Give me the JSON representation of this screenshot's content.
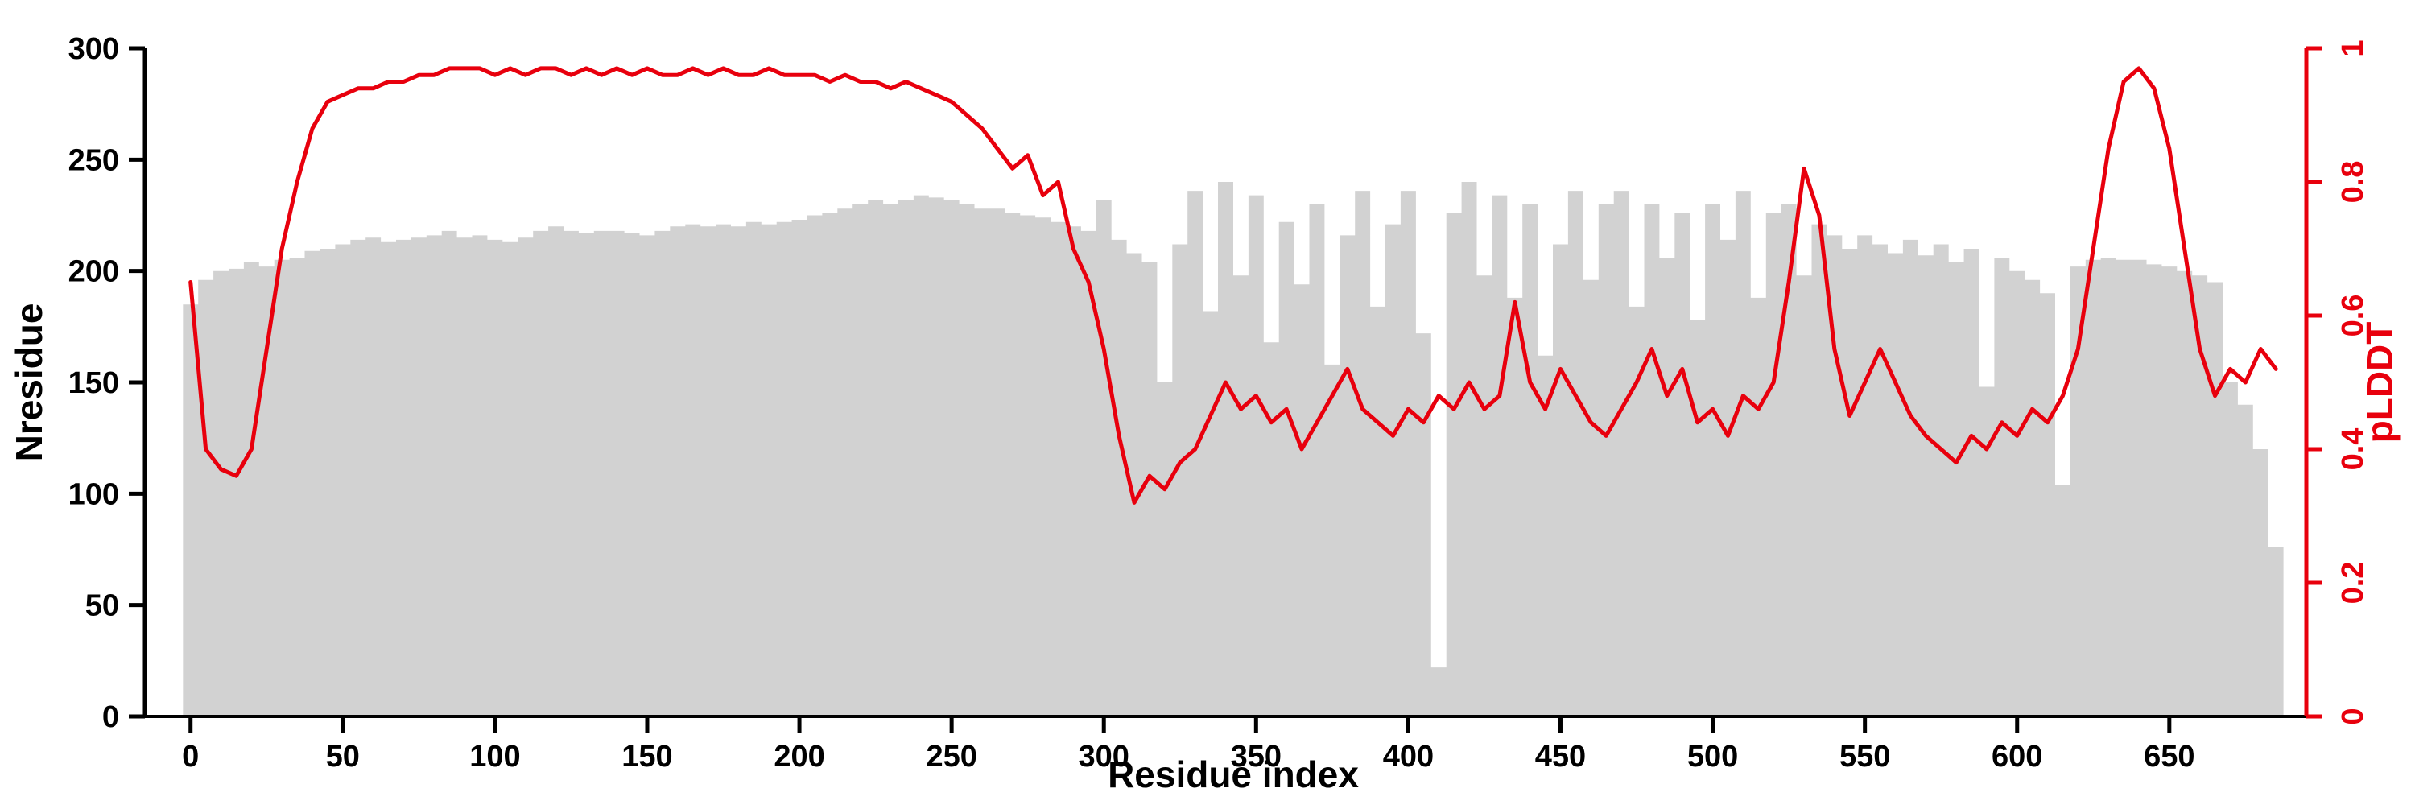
{
  "figure": {
    "background": "#ffffff"
  },
  "chart_data": {
    "type": "combo",
    "title": "",
    "xlabel": "Residue index",
    "xlim": [
      -15,
      695
    ],
    "x_ticks": [
      0,
      50,
      100,
      150,
      200,
      250,
      300,
      350,
      400,
      450,
      500,
      550,
      600,
      650
    ],
    "grid": false,
    "legend": "none",
    "axes": {
      "left": {
        "label": "Nresidue",
        "lim": [
          0,
          300
        ],
        "ticks": [
          0,
          50,
          100,
          150,
          200,
          250,
          300
        ],
        "color": "#000000"
      },
      "right": {
        "label": "pLDDT",
        "lim": [
          0,
          1
        ],
        "ticks": [
          0,
          0.2,
          0.4,
          0.6,
          0.8,
          1
        ],
        "color": "#e8000d"
      }
    },
    "x": [
      0,
      5,
      10,
      15,
      20,
      25,
      30,
      35,
      40,
      45,
      50,
      55,
      60,
      65,
      70,
      75,
      80,
      85,
      90,
      95,
      100,
      105,
      110,
      115,
      120,
      125,
      130,
      135,
      140,
      145,
      150,
      155,
      160,
      165,
      170,
      175,
      180,
      185,
      190,
      195,
      200,
      205,
      210,
      215,
      220,
      225,
      230,
      235,
      240,
      245,
      250,
      255,
      260,
      265,
      270,
      275,
      280,
      285,
      290,
      295,
      300,
      305,
      310,
      315,
      320,
      325,
      330,
      335,
      340,
      345,
      350,
      355,
      360,
      365,
      370,
      375,
      380,
      385,
      390,
      395,
      400,
      405,
      410,
      415,
      420,
      425,
      430,
      435,
      440,
      445,
      450,
      455,
      460,
      465,
      470,
      475,
      480,
      485,
      490,
      495,
      500,
      505,
      510,
      515,
      520,
      525,
      530,
      535,
      540,
      545,
      550,
      555,
      560,
      565,
      570,
      575,
      580,
      585,
      590,
      595,
      600,
      605,
      610,
      615,
      620,
      625,
      630,
      635,
      640,
      645,
      650,
      655,
      660,
      665,
      670,
      675,
      680,
      685
    ],
    "series": [
      {
        "name": "Nresidue",
        "render": "area",
        "axis": "left",
        "color": "#d2d2d2",
        "values": [
          185,
          196,
          200,
          201,
          204,
          202,
          205,
          206,
          209,
          210,
          212,
          214,
          215,
          213,
          214,
          215,
          216,
          218,
          215,
          216,
          214,
          213,
          215,
          218,
          220,
          218,
          217,
          218,
          218,
          217,
          216,
          218,
          220,
          221,
          220,
          221,
          220,
          222,
          221,
          222,
          223,
          225,
          226,
          228,
          230,
          232,
          230,
          232,
          234,
          233,
          232,
          230,
          228,
          228,
          226,
          225,
          224,
          222,
          220,
          218,
          232,
          214,
          208,
          204,
          150,
          212,
          236,
          182,
          240,
          198,
          234,
          168,
          222,
          194,
          230,
          158,
          216,
          236,
          184,
          221,
          236,
          172,
          22,
          226,
          240,
          198,
          234,
          188,
          230,
          162,
          212,
          236,
          196,
          230,
          236,
          184,
          230,
          206,
          226,
          178,
          230,
          214,
          236,
          188,
          226,
          230,
          198,
          221,
          216,
          210,
          216,
          212,
          208,
          214,
          207,
          212,
          204,
          210,
          148,
          206,
          200,
          196,
          190,
          104,
          202,
          205,
          206,
          205,
          205,
          203,
          202,
          200,
          198,
          195,
          150,
          140,
          120,
          76
        ]
      },
      {
        "name": "pLDDT",
        "render": "line",
        "axis": "right",
        "color": "#e8000d",
        "values": [
          0.65,
          0.4,
          0.37,
          0.36,
          0.4,
          0.55,
          0.7,
          0.8,
          0.88,
          0.92,
          0.93,
          0.94,
          0.94,
          0.95,
          0.95,
          0.96,
          0.96,
          0.97,
          0.97,
          0.97,
          0.96,
          0.97,
          0.96,
          0.97,
          0.97,
          0.96,
          0.97,
          0.96,
          0.97,
          0.96,
          0.97,
          0.96,
          0.96,
          0.97,
          0.96,
          0.97,
          0.96,
          0.96,
          0.97,
          0.96,
          0.96,
          0.96,
          0.95,
          0.96,
          0.95,
          0.95,
          0.94,
          0.95,
          0.94,
          0.93,
          0.92,
          0.9,
          0.88,
          0.85,
          0.82,
          0.84,
          0.78,
          0.8,
          0.7,
          0.65,
          0.55,
          0.42,
          0.32,
          0.36,
          0.34,
          0.38,
          0.4,
          0.45,
          0.5,
          0.46,
          0.48,
          0.44,
          0.46,
          0.4,
          0.44,
          0.48,
          0.52,
          0.46,
          0.44,
          0.42,
          0.46,
          0.44,
          0.48,
          0.46,
          0.5,
          0.46,
          0.48,
          0.62,
          0.5,
          0.46,
          0.52,
          0.48,
          0.44,
          0.42,
          0.46,
          0.5,
          0.55,
          0.48,
          0.52,
          0.44,
          0.46,
          0.42,
          0.48,
          0.46,
          0.5,
          0.65,
          0.82,
          0.75,
          0.55,
          0.45,
          0.5,
          0.55,
          0.5,
          0.45,
          0.42,
          0.4,
          0.38,
          0.42,
          0.4,
          0.44,
          0.42,
          0.46,
          0.44,
          0.48,
          0.55,
          0.7,
          0.85,
          0.95,
          0.97,
          0.94,
          0.85,
          0.7,
          0.55,
          0.48,
          0.52,
          0.5,
          0.55,
          0.52
        ]
      }
    ]
  }
}
